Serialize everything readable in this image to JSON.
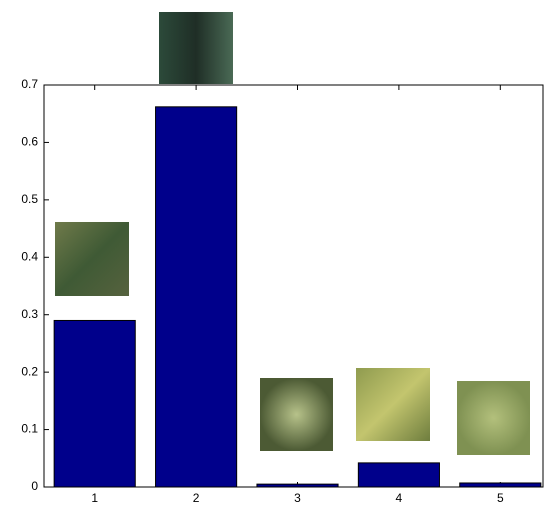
{
  "chart_data": {
    "type": "bar",
    "categories": [
      "1",
      "2",
      "3",
      "4",
      "5"
    ],
    "values": [
      0.29,
      0.662,
      0.005,
      0.042,
      0.007
    ],
    "color": "#00008b",
    "ylim": [
      0,
      0.7
    ],
    "yticks": [
      0,
      0.1,
      0.2,
      0.3,
      0.4,
      0.5,
      0.6,
      0.7
    ]
  }
}
